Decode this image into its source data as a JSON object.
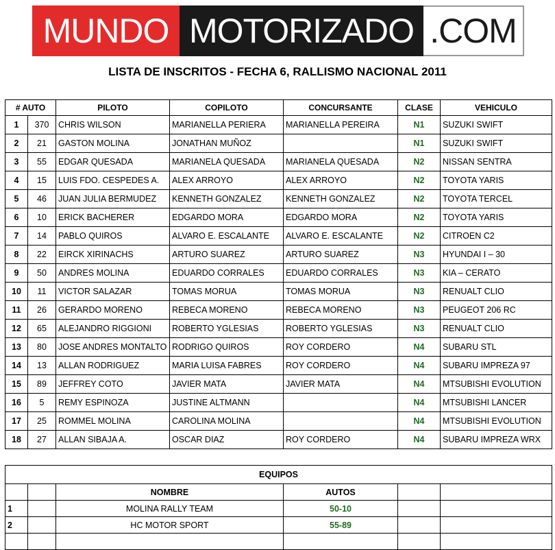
{
  "logo": {
    "part1": "MUNDO",
    "part2": "MOTORIZADO",
    "part3": ".COM",
    "colors": {
      "red": "#e42b2b",
      "black": "#1a1a1a"
    }
  },
  "title": "LISTA DE INSCRITOS - FECHA 6, RALLISMO NACIONAL 2011",
  "headers": {
    "auto": "# AUTO",
    "piloto": "PILOTO",
    "copiloto": "COPILOTO",
    "concursante": "CONCURSANTE",
    "clase": "CLASE",
    "vehiculo": "VEHICULO"
  },
  "class_color": "#1e6b1e",
  "entries": [
    {
      "n": "1",
      "auto": "370",
      "piloto": "CHRIS WILSON",
      "copiloto": "MARIANELLA PERIERA",
      "concursante": "MARIANELLA PEREIRA",
      "clase": "N1",
      "vehiculo": "SUZUKI SWIFT"
    },
    {
      "n": "2",
      "auto": "21",
      "piloto": "GASTON MOLINA",
      "copiloto": "JONATHAN MUÑOZ",
      "concursante": "",
      "clase": "N1",
      "vehiculo": "SUZUKI SWIFT"
    },
    {
      "n": "3",
      "auto": "55",
      "piloto": "EDGAR QUESADA",
      "copiloto": "MARIANELA QUESADA",
      "concursante": "MARIANELA QUESADA",
      "clase": "N2",
      "vehiculo": "NISSAN SENTRA"
    },
    {
      "n": "4",
      "auto": "15",
      "piloto": "LUIS FDO. CESPEDES A.",
      "copiloto": "ALEX ARROYO",
      "concursante": "ALEX  ARROYO",
      "clase": "N2",
      "vehiculo": "TOYOTA YARIS"
    },
    {
      "n": "5",
      "auto": "46",
      "piloto": "JUAN JULIA  BERMUDEZ",
      "copiloto": "KENNETH GONZALEZ",
      "concursante": "KENNETH GONZALEZ",
      "clase": "N2",
      "vehiculo": "TOYOTA TERCEL"
    },
    {
      "n": "6",
      "auto": "10",
      "piloto": "ERICK BACHERER",
      "copiloto": "EDGARDO MORA",
      "concursante": "EDGARDO MORA",
      "clase": "N2",
      "vehiculo": "TOYOTA YARIS"
    },
    {
      "n": "7",
      "auto": "14",
      "piloto": "PABLO QUIROS",
      "copiloto": "ALVARO E. ESCALANTE",
      "concursante": "ALVARO E. ESCALANTE",
      "clase": "N2",
      "vehiculo": "CITROEN C2"
    },
    {
      "n": "8",
      "auto": "22",
      "piloto": "EIRCK XIRINACHS",
      "copiloto": "ARTURO SUAREZ",
      "concursante": "ARTURO SUAREZ",
      "clase": "N3",
      "vehiculo": "HYUNDAI I – 30"
    },
    {
      "n": "9",
      "auto": "50",
      "piloto": "ANDRES MOLINA",
      "copiloto": "EDUARDO CORRALES",
      "concursante": "EDUARDO CORRALES",
      "clase": "N3",
      "vehiculo": "KIA – CERATO"
    },
    {
      "n": "10",
      "auto": "11",
      "piloto": "VICTOR SALAZAR",
      "copiloto": "TOMAS MORUA",
      "concursante": "TOMAS MORUA",
      "clase": "N3",
      "vehiculo": "RENUALT CLIO"
    },
    {
      "n": "11",
      "auto": "26",
      "piloto": "GERARDO MORENO",
      "copiloto": "REBECA MORENO",
      "concursante": "REBECA MORENO",
      "clase": "N3",
      "vehiculo": "PEUGEOT 206 RC"
    },
    {
      "n": "12",
      "auto": "65",
      "piloto": "ALEJANDRO RIGGIONI",
      "copiloto": "ROBERTO YGLESIAS",
      "concursante": "ROBERTO YGLESIAS",
      "clase": "N3",
      "vehiculo": "RENUALT CLIO"
    },
    {
      "n": "13",
      "auto": "80",
      "piloto": "JOSE ANDRES MONTALTO",
      "copiloto": "RODRIGO QUIROS",
      "concursante": "ROY CORDERO",
      "clase": "N4",
      "vehiculo": "SUBARU  STL"
    },
    {
      "n": "14",
      "auto": "13",
      "piloto": "ALLAN RODRIGUEZ",
      "copiloto": "MARIA LUISA FABRES",
      "concursante": "ROY CORDERO",
      "clase": "N4",
      "vehiculo": "SUBARU IMPREZA 97"
    },
    {
      "n": "15",
      "auto": "89",
      "piloto": "JEFFREY COTO",
      "copiloto": "JAVIER MATA",
      "concursante": "JAVIER MATA",
      "clase": "N4",
      "vehiculo": "MTSUBISHI EVOLUTION"
    },
    {
      "n": "16",
      "auto": "5",
      "piloto": "REMY ESPINOZA",
      "copiloto": "JUSTINE ALTMANN",
      "concursante": "",
      "clase": "N4",
      "vehiculo": "MTSUBISHI LANCER"
    },
    {
      "n": "17",
      "auto": "25",
      "piloto": "ROMMEL MOLINA",
      "copiloto": "CAROLINA MOLINA",
      "concursante": "",
      "clase": "N4",
      "vehiculo": "MTSUBISHI EVOLUTION"
    },
    {
      "n": "18",
      "auto": "27",
      "piloto": "ALLAN SIBAJA A.",
      "copiloto": "OSCAR DIAZ",
      "concursante": "ROY CORDERO",
      "clase": "N4",
      "vehiculo": "SUBARU IMPREZA WRX"
    }
  ],
  "teams": {
    "title": "EQUIPOS",
    "nombre_header": "NOMBRE",
    "autos_header": "AUTOS",
    "rows": [
      {
        "n": "1",
        "nombre": "MOLINA RALLY TEAM",
        "autos": "50-10"
      },
      {
        "n": "2",
        "nombre": "HC MOTOR SPORT",
        "autos": "55-89"
      }
    ]
  }
}
